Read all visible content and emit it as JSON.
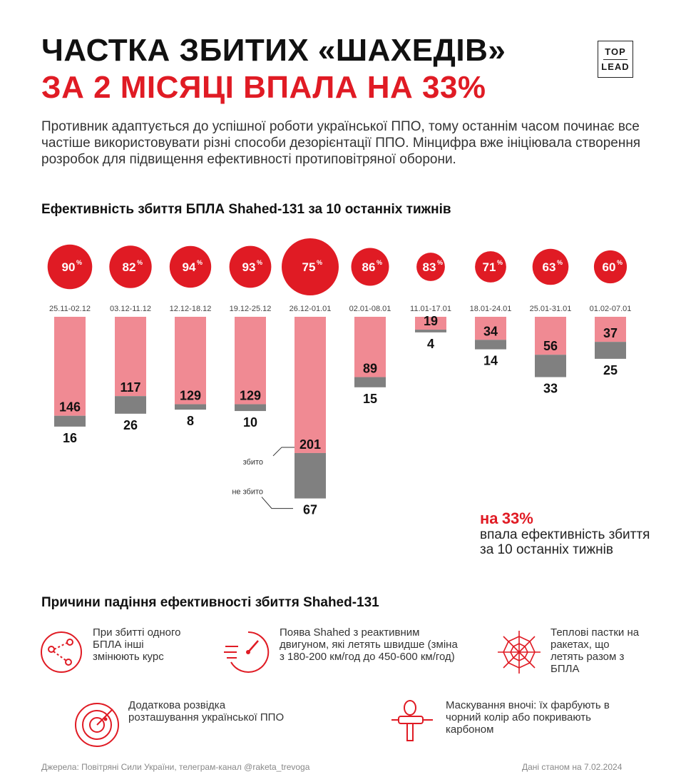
{
  "header": {
    "title_line1": "ЧАСТКА ЗБИТИХ «ШАХЕДІВ»",
    "title_line2": "ЗА 2 МІСЯЦІ ВПАЛА НА 33%",
    "logo_top": "TOP",
    "logo_bottom": "LEAD"
  },
  "intro": "Противник адаптується до успішної роботи української ППО, тому останнім часом починає все частіше використовувати різні способи дезорієнтації ППО. Мінцифра вже ініціювала створення розробок для підвищення ефективності протиповітряної оборони.",
  "colors": {
    "accent": "#e01b24",
    "shot_down": "#f08a93",
    "not_shot": "#808080"
  },
  "chart_data": {
    "type": "bar",
    "title": "Ефективність збиття БПЛА Shahed-131 за 10 останніх тижнів",
    "categories": [
      "25.11-02.12",
      "03.12-11.12",
      "12.12-18.12",
      "19.12-25.12",
      "26.12-01.01",
      "02.01-08.01",
      "11.01-17.01",
      "18.01-24.01",
      "25.01-31.01",
      "01.02-07.01"
    ],
    "efficiency_percent": [
      90,
      82,
      94,
      93,
      75,
      86,
      83,
      71,
      63,
      60
    ],
    "series": [
      {
        "name": "збито",
        "values": [
          146,
          117,
          129,
          129,
          201,
          89,
          19,
          34,
          56,
          37
        ]
      },
      {
        "name": "не збито",
        "values": [
          16,
          26,
          8,
          10,
          67,
          15,
          4,
          14,
          33,
          25
        ]
      }
    ],
    "annotation_shot": "збито",
    "annotation_not_shot": "не збито"
  },
  "note": {
    "prefix": "на",
    "value": "33%",
    "text": "впала ефективність збиття за 10 останніх тижнів"
  },
  "reasons_title": "Причини падіння ефективності збиття Shahed-131",
  "reasons": [
    {
      "icon": "route-icon",
      "text": "При збитті одного БПЛА інші змінюють курс"
    },
    {
      "icon": "speed-icon",
      "text": "Поява Shahed з реактивним двигуном, які летять швидше (зміна з 180-200 км/год до 450-600 км/год)"
    },
    {
      "icon": "web-icon",
      "text": "Теплові пастки на ракетах, що летять разом з БПЛА"
    },
    {
      "icon": "radar-icon",
      "text": "Додаткова розвідка розташування української ППО"
    },
    {
      "icon": "spray-gun-icon",
      "text": "Маскування вночі: їх фарбують в чорний колір або покривають карбоном"
    }
  ],
  "footer": {
    "source": "Джерела: Повітряні Сили України, телеграм-канал @raketa_trevoga",
    "date": "Дані станом на 7.02.2024"
  }
}
